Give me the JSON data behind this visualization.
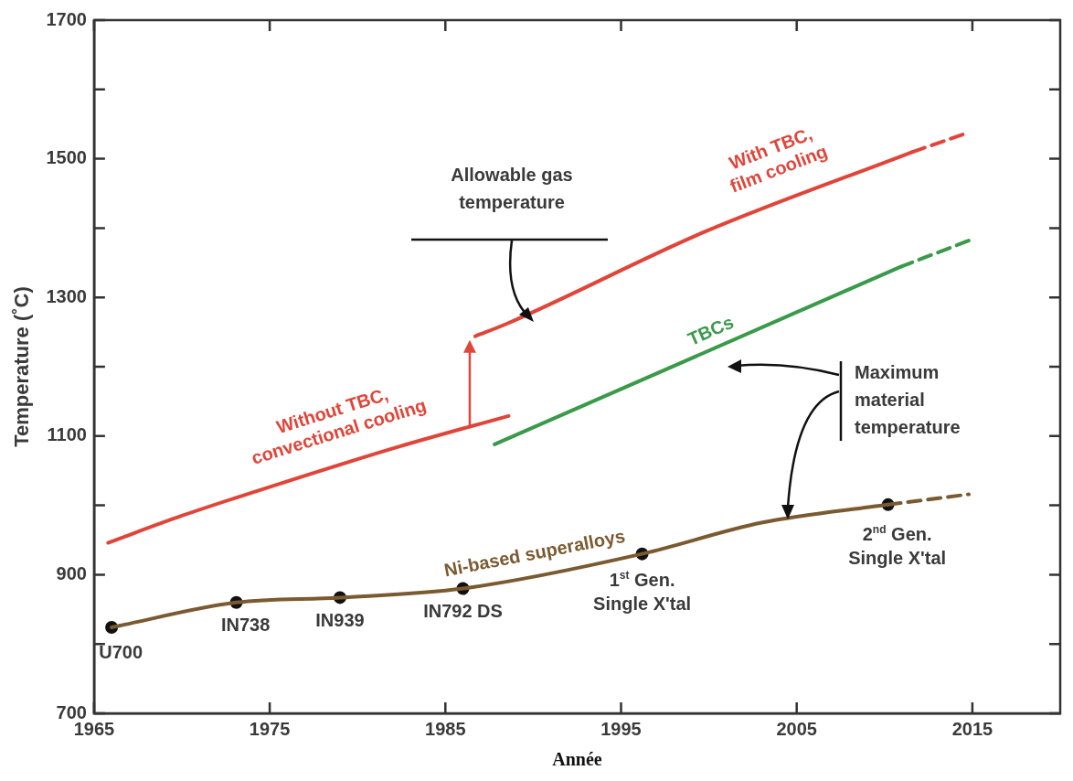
{
  "chart_data": {
    "type": "line",
    "xlabel": "Année",
    "ylabel": "Temperature (˚C)",
    "xlim": [
      1965,
      2020
    ],
    "xticks": [
      1965,
      1975,
      1985,
      1995,
      2005,
      2015
    ],
    "ylim": [
      700,
      1700
    ],
    "yticks": [
      700,
      {
        "value": 800,
        "label": null
      },
      900,
      {
        "value": 1000,
        "label": null
      },
      1100,
      {
        "value": 1200,
        "label": null
      },
      1300,
      {
        "value": 1400,
        "label": null
      },
      1500,
      {
        "value": 1600,
        "label": null
      },
      1700
    ],
    "grid": false,
    "legend": false,
    "marker": "none",
    "series": [
      {
        "name": "Without TBC, convectional cooling",
        "color": "#e0453a",
        "x": [
          1965.8,
          1970,
          1975.3,
          1982.4,
          1988.6
        ],
        "values": [
          946,
          985,
          1029,
          1085,
          1129
        ],
        "line_style": "solid"
      },
      {
        "name": "With TBC, film cooling",
        "color": "#e0453a",
        "x": [
          1986.7,
          1988.5,
          1999.8,
          2011.6
        ],
        "values": [
          1244,
          1262,
          1395,
          1510
        ],
        "line_style": "solid"
      },
      {
        "color": "#e0453a",
        "x": [
          2011.6,
          2014.8
        ],
        "values": [
          1510,
          1538
        ],
        "line_style": "dashed"
      },
      {
        "name": "TBCs",
        "color": "#3a9a4a",
        "x": [
          1987.8,
          2010.9
        ],
        "values": [
          1088,
          1344
        ],
        "line_style": "solid"
      },
      {
        "color": "#3a9a4a",
        "x": [
          2010.9,
          2014.8
        ],
        "values": [
          1344,
          1382
        ],
        "line_style": "dashed"
      },
      {
        "name": "Ni-based superalloys",
        "color": "#7a5a30",
        "x": [
          1966,
          1973.1,
          1979,
          1986,
          1996.2,
          2003,
          2010.2
        ],
        "values": [
          824,
          860,
          867,
          880,
          930,
          975,
          1001
        ],
        "line_style": "solid"
      },
      {
        "color": "#7a5a30",
        "x": [
          2010.2,
          2014.8
        ],
        "values": [
          1001,
          1016
        ],
        "line_style": "dashed"
      },
      {
        "type": "scatter",
        "color": "#111111",
        "marker": "circle",
        "x": [
          1966,
          1973.1,
          1979,
          1986,
          1996.2,
          2010.2
        ],
        "values": [
          824,
          860,
          867,
          880,
          930,
          1001
        ]
      }
    ],
    "annotations": [
      {
        "text": "U700",
        "x": 1966,
        "y": 824
      },
      {
        "text": "IN738",
        "x": 1973.1,
        "y": 860
      },
      {
        "text": "IN939",
        "x": 1979,
        "y": 867
      },
      {
        "text": "IN792 DS",
        "x": 1986,
        "y": 880
      },
      {
        "text": "1$^{st}$ Gen. Single X'tal",
        "x": 1996.2,
        "y": 930
      },
      {
        "text": "2$^{nd}$ Gen. Single X'tal",
        "x": 2010.2,
        "y": 1001
      },
      "Allowable gas temperature",
      "Maximum material temperature"
    ]
  }
}
